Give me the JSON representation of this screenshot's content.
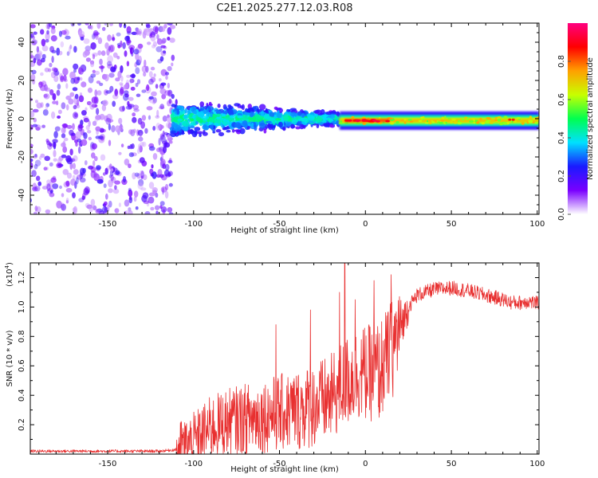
{
  "title": "C2E1.2025.277.12.03.R08",
  "chart_data": [
    {
      "type": "heatmap",
      "name": "spectrogram",
      "xlabel": "Height of straight line (km)",
      "ylabel": "Frequency (Hz)",
      "xlim": [
        -195,
        101
      ],
      "ylim": [
        -50,
        50
      ],
      "xticks": [
        -150,
        -100,
        -50,
        0,
        50,
        100
      ],
      "yticks": [
        -40,
        -20,
        0,
        20,
        40
      ],
      "colorbar": {
        "label": "Normalized spectral amplitude",
        "range": [
          0,
          1
        ],
        "ticks": [
          0.0,
          0.2,
          0.4,
          0.6,
          0.8
        ],
        "colormap": [
          "#ffffff",
          "#7a00ff",
          "#1a1aff",
          "#00e0ff",
          "#00ff50",
          "#c8ff00",
          "#ffa000",
          "#ff0000",
          "#ff0080"
        ]
      },
      "regions": [
        {
          "x_range": [
            -195,
            -112
          ],
          "freq_band": [
            -50,
            50
          ],
          "amplitude": 0.12,
          "description": "scattered noise"
        },
        {
          "x_range": [
            -112,
            -15
          ],
          "freq_center": 0,
          "freq_halfwidth": [
            3,
            9
          ],
          "amplitude": 0.3
        },
        {
          "x_range": [
            -15,
            101
          ],
          "freq_center": -1,
          "freq_halfwidth": 3,
          "amplitude": 0.55
        },
        {
          "x_range": [
            -12,
            14
          ],
          "freq_center": -1,
          "amplitude": 0.95,
          "description": "peak band"
        }
      ]
    },
    {
      "type": "line",
      "name": "snr",
      "xlabel": "Height of straight line (km)",
      "ylabel": "SNR (10 * v/v)",
      "y_multiplier_base": "(x10",
      "y_multiplier_exp": "4",
      "y_multiplier_close": ")",
      "xlim": [
        -195,
        101
      ],
      "ylim": [
        0,
        1.3
      ],
      "xticks": [
        -150,
        -100,
        -50,
        0,
        50,
        100
      ],
      "yticks": [
        0.2,
        0.4,
        0.6,
        0.8,
        1.0,
        1.2
      ],
      "color": "#e83030",
      "envelope": {
        "x": [
          -195,
          -160,
          -120,
          -110,
          -100,
          -90,
          -80,
          -70,
          -60,
          -50,
          -40,
          -30,
          -20,
          -15,
          -10,
          -5,
          0,
          5,
          10,
          15,
          20,
          25,
          30,
          40,
          50,
          60,
          70,
          80,
          85,
          90,
          95,
          101
        ],
        "y": [
          0.02,
          0.02,
          0.02,
          0.03,
          0.08,
          0.18,
          0.22,
          0.24,
          0.26,
          0.28,
          0.3,
          0.33,
          0.38,
          0.45,
          0.5,
          0.55,
          0.55,
          0.55,
          0.6,
          0.7,
          0.85,
          1.0,
          1.08,
          1.12,
          1.13,
          1.11,
          1.08,
          1.05,
          1.03,
          1.03,
          1.04,
          1.02
        ]
      },
      "spikes": [
        {
          "x": -52,
          "y": 0.88
        },
        {
          "x": -32,
          "y": 0.98
        },
        {
          "x": -15,
          "y": 1.1
        },
        {
          "x": -12,
          "y": 1.3
        },
        {
          "x": -6,
          "y": 1.05
        },
        {
          "x": 5,
          "y": 1.18
        },
        {
          "x": 8,
          "y": 0.25
        },
        {
          "x": 15,
          "y": 1.22
        }
      ]
    }
  ]
}
